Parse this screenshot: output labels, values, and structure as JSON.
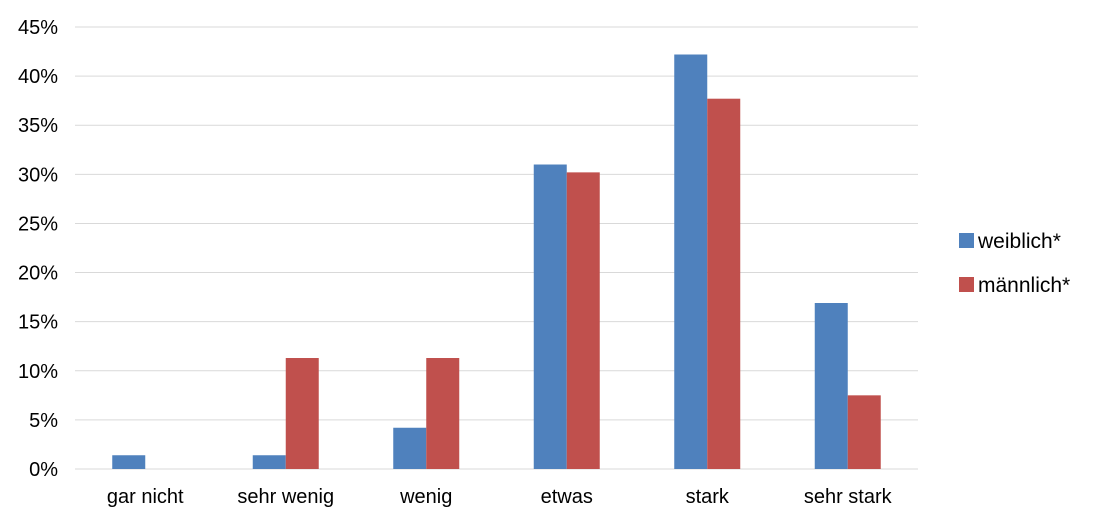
{
  "chart_data": {
    "type": "bar",
    "categories": [
      "gar nicht",
      "sehr wenig",
      "wenig",
      "etwas",
      "stark",
      "sehr stark"
    ],
    "series": [
      {
        "name": "weiblich*",
        "color": "#4f81bd",
        "values": [
          1.4,
          1.4,
          4.2,
          31.0,
          42.2,
          16.9
        ]
      },
      {
        "name": "männlich*",
        "color": "#c0504d",
        "values": [
          0,
          11.3,
          11.3,
          30.2,
          37.7,
          7.5
        ]
      }
    ],
    "y_ticks": [
      "0%",
      "5%",
      "10%",
      "15%",
      "20%",
      "25%",
      "30%",
      "35%",
      "40%",
      "45%"
    ],
    "ylim": [
      0,
      45
    ],
    "y_unit": "%",
    "grid": true,
    "legend_position": "right"
  }
}
